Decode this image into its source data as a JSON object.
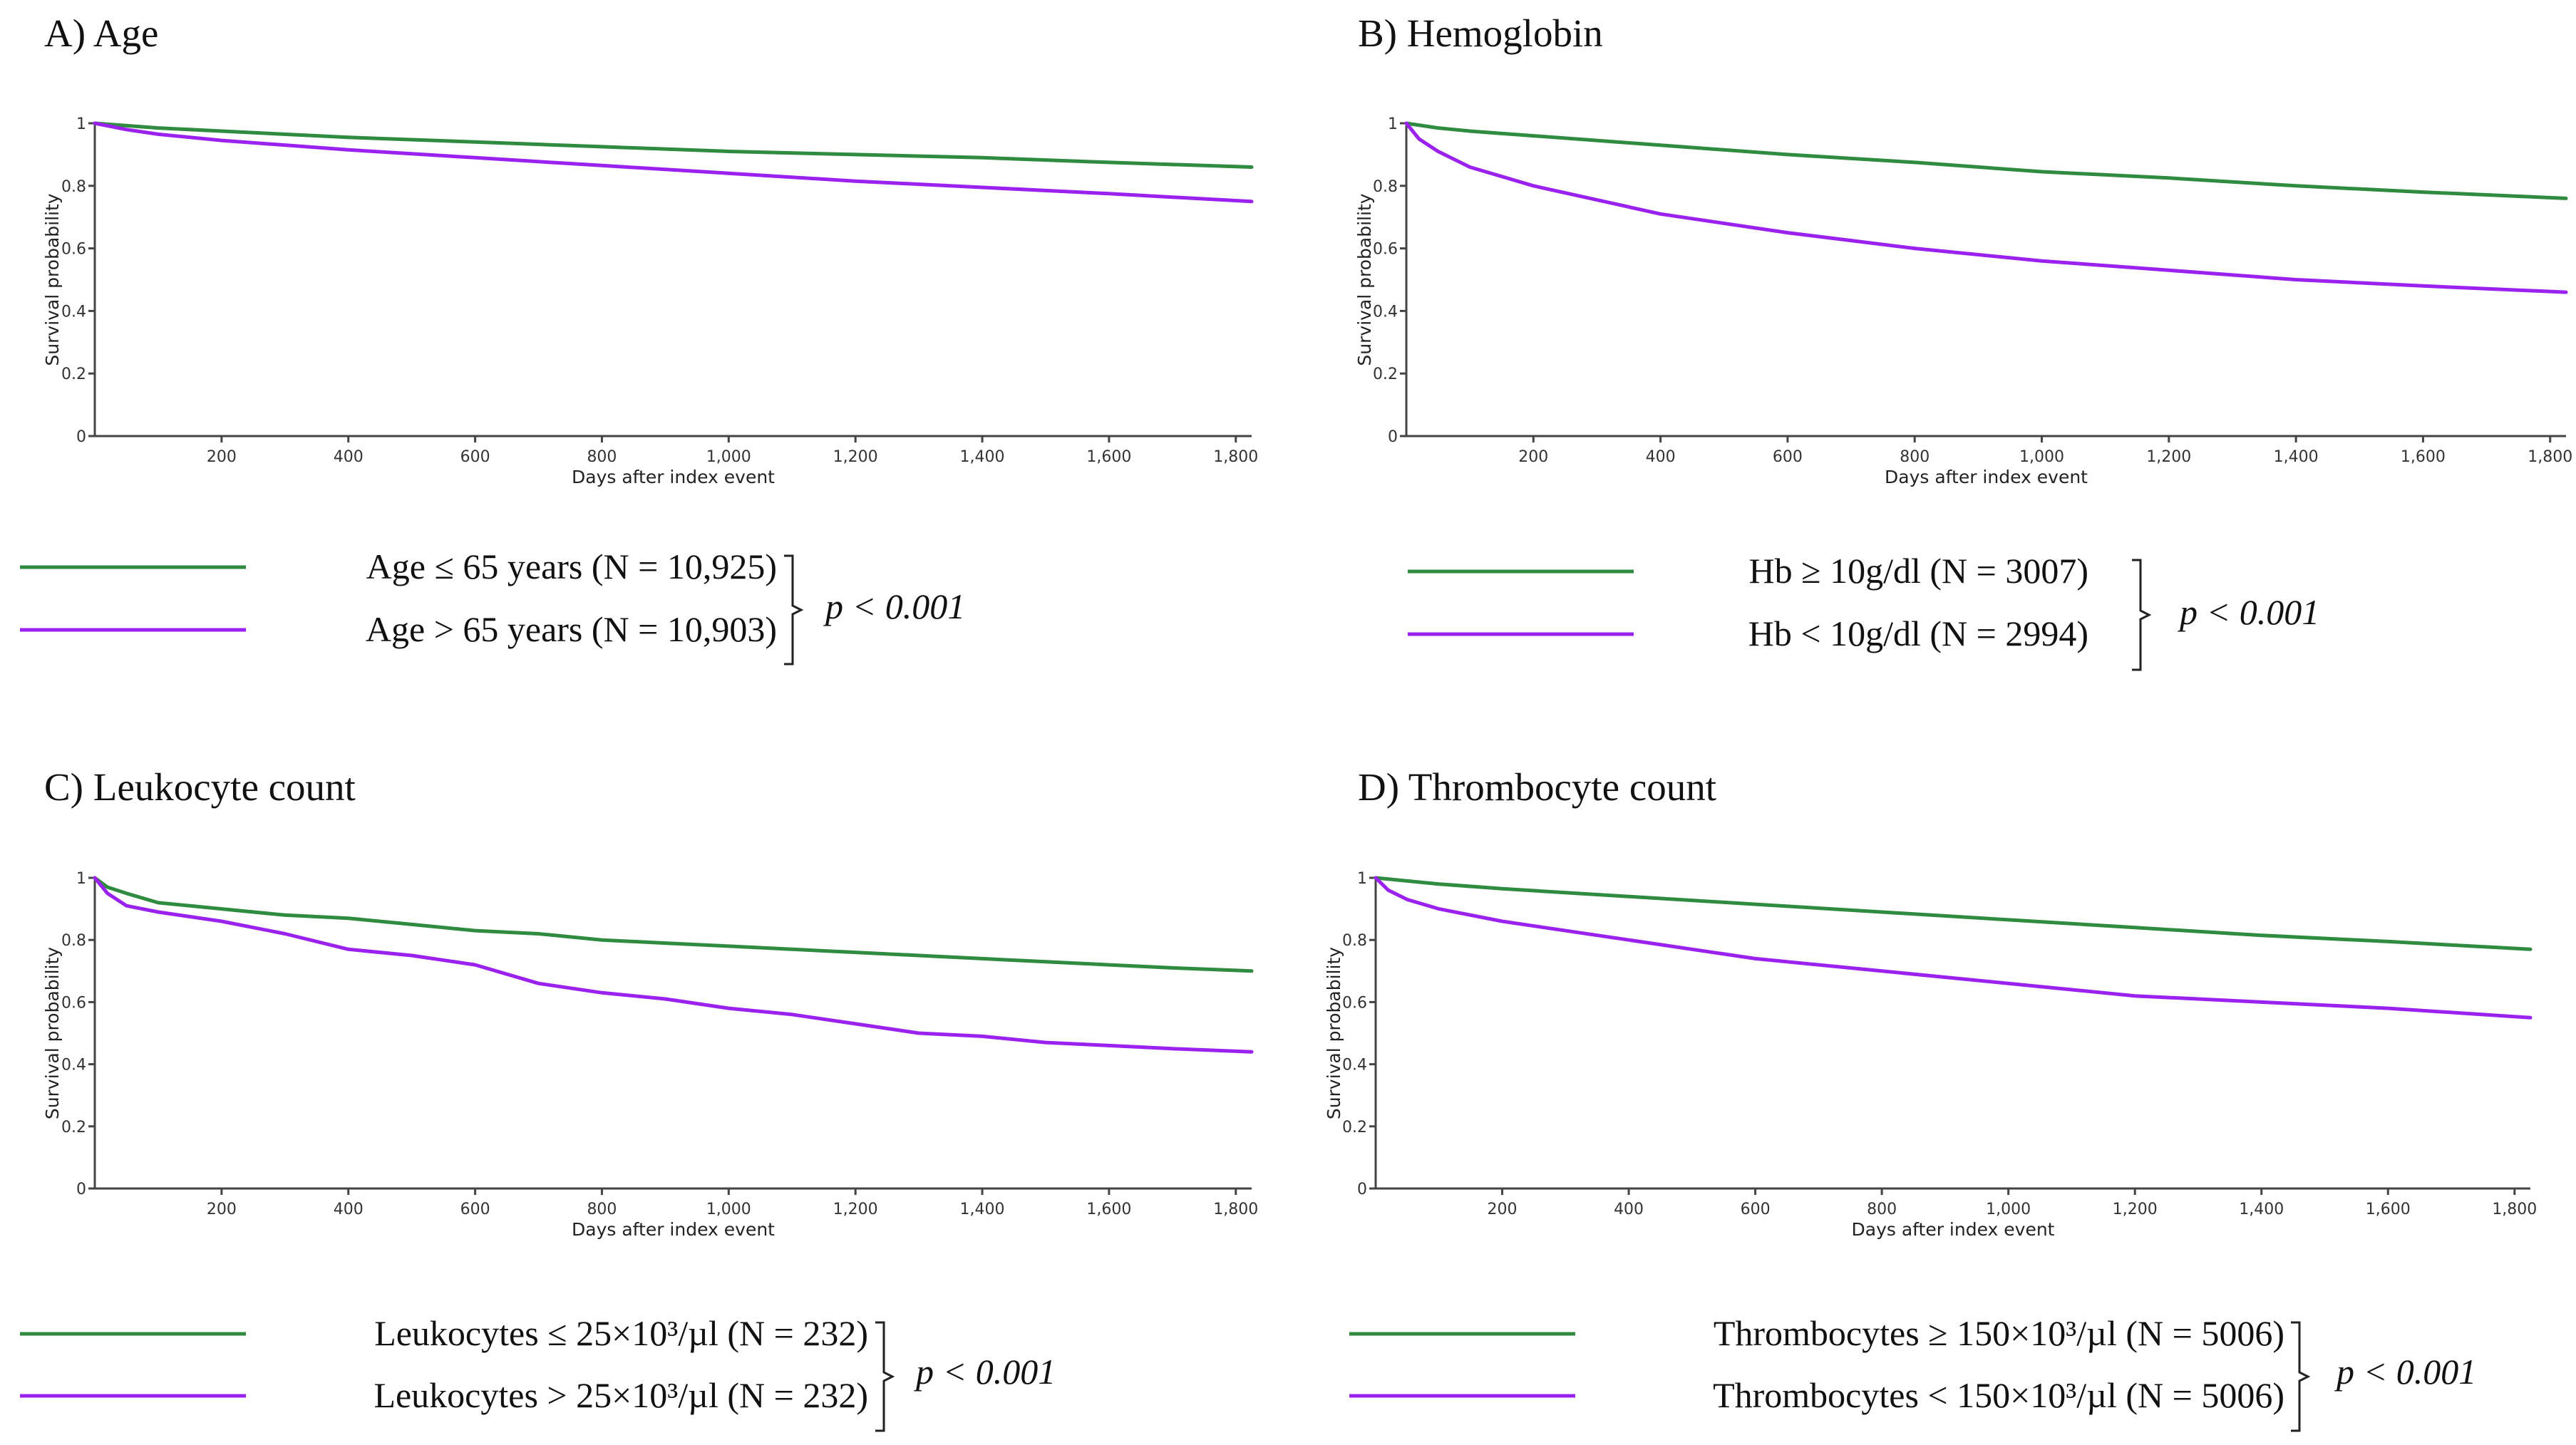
{
  "figure": {
    "colors": {
      "group1": "#2e8b3f",
      "group2": "#9b22ee",
      "axis": "#444444"
    }
  },
  "chart_data": [
    {
      "type": "line",
      "panel": "A",
      "title": "A) Age",
      "xlabel": "Days after index event",
      "ylabel": "Survival probability",
      "xlim": [
        0,
        1825
      ],
      "ylim": [
        0,
        1
      ],
      "xticks": [
        200,
        400,
        600,
        800,
        1000,
        1200,
        1400,
        1600,
        1800
      ],
      "xtick_labels": [
        "200",
        "400",
        "600",
        "800",
        "1,000",
        "1,200",
        "1,400",
        "1,600",
        "1,800"
      ],
      "yticks": [
        0,
        0.2,
        0.4,
        0.6,
        0.8,
        1
      ],
      "ytick_labels": [
        "0",
        "0.2",
        "0.4",
        "0.6",
        "0.8",
        "1"
      ],
      "series": [
        {
          "name": "Age ≤ 65 years (N = 10,925)",
          "color": "#2e8b3f",
          "x": [
            0,
            100,
            200,
            400,
            600,
            800,
            1000,
            1200,
            1400,
            1600,
            1825
          ],
          "y": [
            1.0,
            0.985,
            0.975,
            0.955,
            0.94,
            0.925,
            0.91,
            0.9,
            0.89,
            0.875,
            0.86
          ]
        },
        {
          "name": "Age > 65 years (N = 10,903)",
          "color": "#9b22ee",
          "x": [
            0,
            50,
            100,
            200,
            400,
            600,
            800,
            1000,
            1200,
            1400,
            1600,
            1825
          ],
          "y": [
            1.0,
            0.98,
            0.965,
            0.945,
            0.915,
            0.89,
            0.865,
            0.84,
            0.815,
            0.795,
            0.775,
            0.75
          ]
        }
      ],
      "p_value": "p < 0.001"
    },
    {
      "type": "line",
      "panel": "B",
      "title": "B) Hemoglobin",
      "xlabel": "Days after index event",
      "ylabel": "Survival probability",
      "xlim": [
        0,
        1825
      ],
      "ylim": [
        0,
        1
      ],
      "xticks": [
        200,
        400,
        600,
        800,
        1000,
        1200,
        1400,
        1600,
        1800
      ],
      "xtick_labels": [
        "200",
        "400",
        "600",
        "800",
        "1,000",
        "1,200",
        "1,400",
        "1,600",
        "1,800"
      ],
      "yticks": [
        0,
        0.2,
        0.4,
        0.6,
        0.8,
        1
      ],
      "ytick_labels": [
        "0",
        "0.2",
        "0.4",
        "0.6",
        "0.8",
        "1"
      ],
      "series": [
        {
          "name": "Hb ≥ 10g/dl (N = 3007)",
          "color": "#2e8b3f",
          "x": [
            0,
            50,
            100,
            200,
            400,
            600,
            800,
            1000,
            1200,
            1400,
            1600,
            1825
          ],
          "y": [
            1.0,
            0.985,
            0.975,
            0.96,
            0.93,
            0.9,
            0.875,
            0.845,
            0.825,
            0.8,
            0.78,
            0.76
          ]
        },
        {
          "name": "Hb < 10g/dl (N = 2994)",
          "color": "#9b22ee",
          "x": [
            0,
            20,
            50,
            100,
            200,
            400,
            600,
            800,
            1000,
            1200,
            1400,
            1600,
            1825
          ],
          "y": [
            1.0,
            0.95,
            0.91,
            0.86,
            0.8,
            0.71,
            0.65,
            0.6,
            0.56,
            0.53,
            0.5,
            0.48,
            0.46
          ]
        }
      ],
      "p_value": "p < 0.001"
    },
    {
      "type": "line",
      "panel": "C",
      "title": "C) Leukocyte count",
      "xlabel": "Days after index event",
      "ylabel": "Survival probability",
      "xlim": [
        0,
        1825
      ],
      "ylim": [
        0,
        1
      ],
      "xticks": [
        200,
        400,
        600,
        800,
        1000,
        1200,
        1400,
        1600,
        1800
      ],
      "xtick_labels": [
        "200",
        "400",
        "600",
        "800",
        "1,000",
        "1,200",
        "1,400",
        "1,600",
        "1,800"
      ],
      "yticks": [
        0,
        0.2,
        0.4,
        0.6,
        0.8,
        1
      ],
      "ytick_labels": [
        "0",
        "0.2",
        "0.4",
        "0.6",
        "0.8",
        "1"
      ],
      "series": [
        {
          "name": "Leukocytes ≤ 25×10³/µl (N = 232)",
          "color": "#2e8b3f",
          "x": [
            0,
            20,
            50,
            100,
            200,
            300,
            400,
            500,
            600,
            700,
            800,
            900,
            1000,
            1100,
            1200,
            1300,
            1400,
            1500,
            1600,
            1700,
            1825
          ],
          "y": [
            1.0,
            0.97,
            0.95,
            0.92,
            0.9,
            0.88,
            0.87,
            0.85,
            0.83,
            0.82,
            0.8,
            0.79,
            0.78,
            0.77,
            0.76,
            0.75,
            0.74,
            0.73,
            0.72,
            0.71,
            0.7
          ]
        },
        {
          "name": "Leukocytes > 25×10³/µl (N = 232)",
          "color": "#9b22ee",
          "x": [
            0,
            20,
            50,
            100,
            200,
            300,
            400,
            500,
            600,
            700,
            800,
            900,
            1000,
            1100,
            1200,
            1300,
            1400,
            1500,
            1600,
            1700,
            1825
          ],
          "y": [
            1.0,
            0.95,
            0.91,
            0.89,
            0.86,
            0.82,
            0.77,
            0.75,
            0.72,
            0.66,
            0.63,
            0.61,
            0.58,
            0.56,
            0.53,
            0.5,
            0.49,
            0.47,
            0.46,
            0.45,
            0.44
          ]
        }
      ],
      "p_value": "p < 0.001"
    },
    {
      "type": "line",
      "panel": "D",
      "title": "D) Thrombocyte count",
      "xlabel": "Days after index event",
      "ylabel": "Survival probability",
      "xlim": [
        0,
        1825
      ],
      "ylim": [
        0,
        1
      ],
      "xticks": [
        200,
        400,
        600,
        800,
        1000,
        1200,
        1400,
        1600,
        1800
      ],
      "xtick_labels": [
        "200",
        "400",
        "600",
        "800",
        "1,000",
        "1,200",
        "1,400",
        "1,600",
        "1,800"
      ],
      "yticks": [
        0,
        0.2,
        0.4,
        0.6,
        0.8,
        1
      ],
      "ytick_labels": [
        "0",
        "0.2",
        "0.4",
        "0.6",
        "0.8",
        "1"
      ],
      "series": [
        {
          "name": "Thrombocytes ≥ 150×10³/µl (N = 5006)",
          "color": "#2e8b3f",
          "x": [
            0,
            100,
            200,
            400,
            600,
            800,
            1000,
            1200,
            1400,
            1600,
            1825
          ],
          "y": [
            1.0,
            0.98,
            0.965,
            0.94,
            0.915,
            0.89,
            0.865,
            0.84,
            0.815,
            0.795,
            0.77
          ]
        },
        {
          "name": "Thrombocytes < 150×10³/µl (N = 5006)",
          "color": "#9b22ee",
          "x": [
            0,
            20,
            50,
            100,
            200,
            400,
            600,
            800,
            1000,
            1200,
            1400,
            1600,
            1825
          ],
          "y": [
            1.0,
            0.96,
            0.93,
            0.9,
            0.86,
            0.8,
            0.74,
            0.7,
            0.66,
            0.62,
            0.6,
            0.58,
            0.55
          ]
        }
      ],
      "p_value": "p < 0.001"
    }
  ]
}
